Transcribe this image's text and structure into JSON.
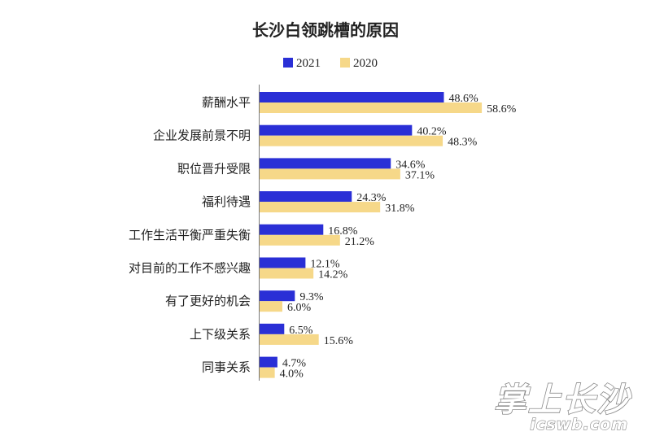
{
  "chart_data": {
    "type": "bar",
    "orientation": "horizontal",
    "title": "长沙白领跳槽的原因",
    "categories": [
      "薪酬水平",
      "企业发展前景不明",
      "职位晋升受限",
      "福利待遇",
      "工作生活平衡严重失衡",
      "对目前的工作不感兴趣",
      "有了更好的机会",
      "上下级关系",
      "同事关系"
    ],
    "series": [
      {
        "name": "2021",
        "color": "#2a2fd6",
        "values": [
          48.6,
          40.2,
          34.6,
          24.3,
          16.8,
          12.1,
          9.3,
          6.5,
          4.7
        ],
        "labels": [
          "48.6%",
          "40.2%",
          "34.6%",
          "24.3%",
          "16.8%",
          "12.1%",
          "9.3%",
          "6.5%",
          "4.7%"
        ]
      },
      {
        "name": "2020",
        "color": "#f6d889",
        "values": [
          58.6,
          48.3,
          37.1,
          31.8,
          21.2,
          14.2,
          6.0,
          15.6,
          4.0
        ],
        "labels": [
          "58.6%",
          "48.3%",
          "37.1%",
          "31.8%",
          "21.2%",
          "14.2%",
          "6.0%",
          "15.6%",
          "4.0%"
        ]
      }
    ],
    "legend_position": "top-center",
    "grid": false,
    "xlim": [
      0,
      65
    ]
  },
  "watermark": {
    "brand": "掌上长沙",
    "url": "icswb.com"
  }
}
